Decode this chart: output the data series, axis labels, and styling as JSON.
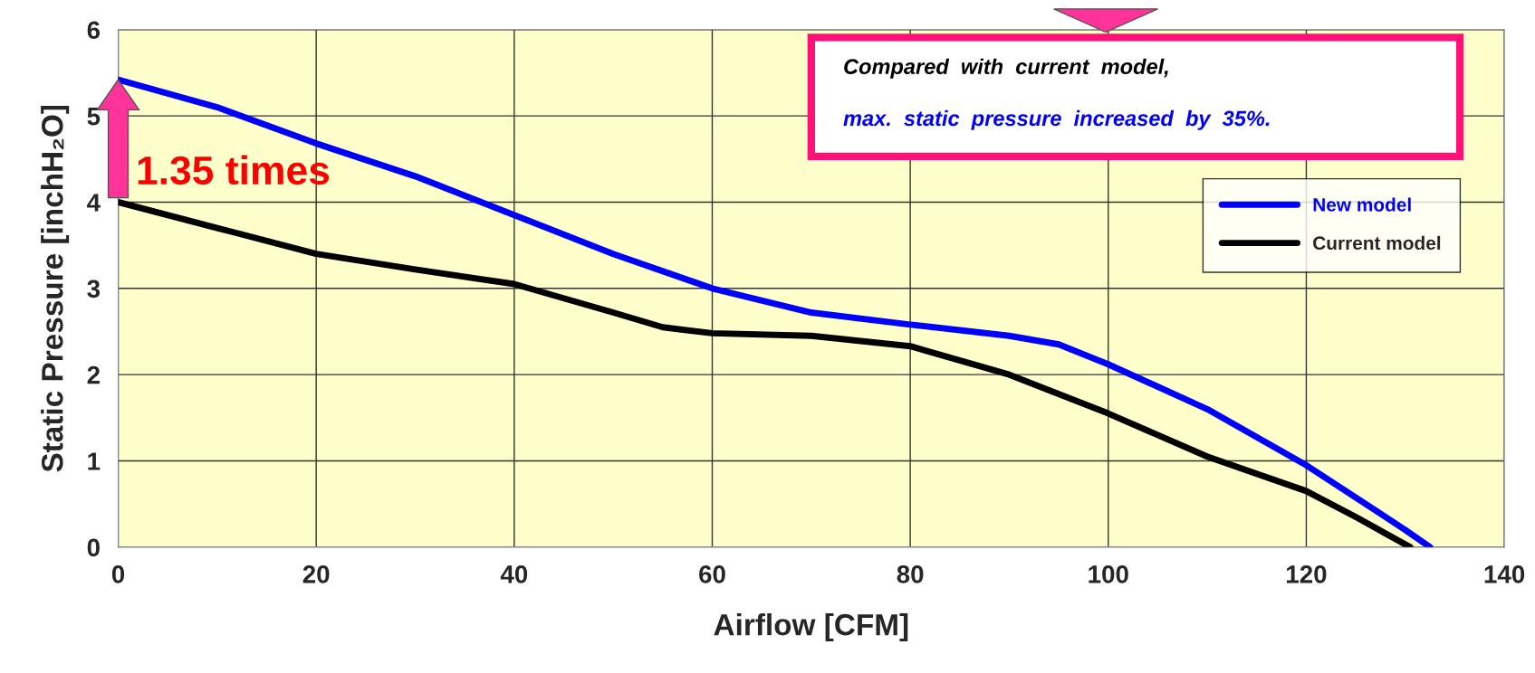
{
  "chart_data": {
    "type": "line",
    "xlabel": "Airflow [CFM]",
    "ylabel": "Static Pressure [inchH₂O]",
    "xlim": [
      0,
      140
    ],
    "xticks": [
      0,
      20,
      40,
      60,
      80,
      100,
      120,
      140
    ],
    "ylim": [
      0,
      6
    ],
    "yticks": [
      0,
      1,
      2,
      3,
      4,
      5,
      6
    ],
    "grid": true,
    "legend": "top right",
    "line_style": "solid",
    "marker": "none",
    "series": [
      {
        "name": "New model",
        "color": "#0000ff",
        "x": [
          0,
          10,
          20,
          30,
          40,
          50,
          60,
          70,
          80,
          90,
          95,
          100,
          110,
          120,
          130,
          132.5
        ],
        "values": [
          5.42,
          5.1,
          4.68,
          4.3,
          3.85,
          3.4,
          3.0,
          2.72,
          2.58,
          2.45,
          2.35,
          2.12,
          1.6,
          0.95,
          0.2,
          0
        ]
      },
      {
        "name": "Current model",
        "color": "#000000",
        "x": [
          0,
          10,
          20,
          30,
          40,
          50,
          55,
          60,
          70,
          80,
          90,
          100,
          110,
          120,
          125,
          130.5
        ],
        "values": [
          4.0,
          3.7,
          3.4,
          3.22,
          3.05,
          2.72,
          2.55,
          2.48,
          2.45,
          2.33,
          2.0,
          1.55,
          1.05,
          0.65,
          0.35,
          0
        ]
      }
    ],
    "annotations": [
      {
        "text": "1.35 times",
        "x": 0,
        "y": 5.42
      },
      "Compared  with  current  model,",
      "max.  static  pressure  increased  by  35%."
    ]
  }
}
